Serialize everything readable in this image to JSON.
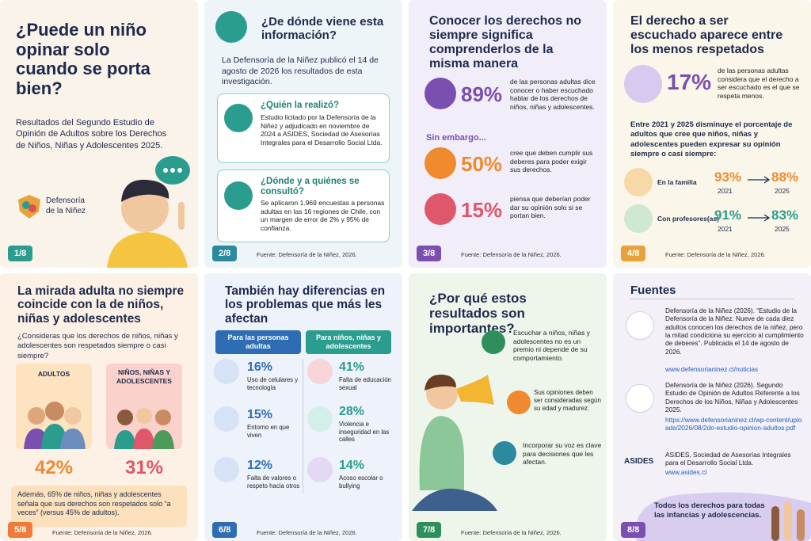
{
  "cards": [
    {
      "title": "¿Puede un niño opinar solo cuando se porta bien?",
      "text": "Resultados del Segundo Estudio de Opinión de Adultos sobre los Derechos de Niños, Niñas y Adolescentes 2025.",
      "logo": "Defensoría de la Niñez",
      "page": "1/8"
    },
    {
      "title": "¿De dónde viene esta información?",
      "intro": "La Defensoría de la Niñez publicó el 14 de agosto de 2026 los resultados de esta investigación.",
      "boxes": [
        {
          "heading": "¿Quién la realizó?",
          "text": "Estudio licitado por la Defensoría de la Niñez y adjudicado en noviembre de 2024 a ASIDES, Sociedad de Asesorías Integrales para el Desarrollo Social Ltda."
        },
        {
          "heading": "¿Dónde y a quiénes se consultó?",
          "text": "Se aplicaron 1.969 encuestas a personas adultas en las 16 regiones de Chile, con un margen de error de 2% y 95% de confianza."
        }
      ],
      "source": "Fuente: Defensoría de la Niñez, 2026.",
      "page": "2/8"
    },
    {
      "title": "Conocer los derechos no siempre significa comprenderlos de la misma manera",
      "stats": [
        {
          "value": "89%",
          "text": "de las personas adultas dice conocer o haber escuchado hablar de los derechos de niños, niñas y adolescentes."
        },
        {
          "value": "50%",
          "text": "cree que deben cumplir sus deberes para poder exigir sus derechos."
        },
        {
          "value": "15%",
          "text": "piensa que deberían poder dar su opinión solo si se portan bien."
        }
      ],
      "subheading": "Sin embargo...",
      "source": "Fuente: Defensoría de la Niñez, 2026.",
      "page": "3/8"
    },
    {
      "title": "El derecho a ser escuchado aparece entre los menos respetados",
      "stat": {
        "value": "17%",
        "text": "de las personas adultas considera que el derecho a ser escuchado es el que se respeta menos."
      },
      "subtitle": "Entre 2021 y 2025 disminuye el porcentaje de adultos que cree que niños, niñas y adolescentes pueden expresar su opinión siempre o casi siempre:",
      "rows": [
        {
          "label": "En la familia",
          "from": "93%",
          "from_year": "2021",
          "to": "88%",
          "to_year": "2025"
        },
        {
          "label": "Con profesores(as)",
          "from": "91%",
          "from_year": "2021",
          "to": "83%",
          "to_year": "2025"
        }
      ],
      "source": "Fuente: Defensoría de la Niñez, 2026.",
      "page": "4/8"
    },
    {
      "title": "La mirada adulta no siempre coincide con la de niños, niñas y adolescentes",
      "question": "¿Consideras que los derechos de niños, niñas y adolescentes son respetados siempre o casi siempre?",
      "groups": [
        {
          "label": "ADULTOS",
          "value": "42%"
        },
        {
          "label": "NIÑOS, NIÑAS Y ADOLESCENTES",
          "value": "31%"
        }
      ],
      "note": "Además, 65% de niños, niñas y adolescentes señala que sus derechos son respetados solo “a veces” (versus 45% de adultos).",
      "source": "Fuente: Defensoría de la Niñez, 2026.",
      "page": "5/8"
    },
    {
      "title": "También hay diferencias en los problemas que más les afectan",
      "columns": [
        {
          "heading": "Para las personas adultas",
          "items": [
            {
              "value": "16%",
              "text": "Uso de celulares y tecnología"
            },
            {
              "value": "15%",
              "text": "Entorno en que viven"
            },
            {
              "value": "12%",
              "text": "Falta de valores o respeto hacia otros"
            }
          ]
        },
        {
          "heading": "Para niños, niñas y adolescentes",
          "items": [
            {
              "value": "41%",
              "text": "Falta de educación sexual"
            },
            {
              "value": "28%",
              "text": "Violencia e inseguridad en las calles"
            },
            {
              "value": "14%",
              "text": "Acoso escolar o bullying"
            }
          ]
        }
      ],
      "source": "Fuente: Defensoría de la Niñez, 2026.",
      "page": "6/8"
    },
    {
      "title": "¿Por qué estos resultados son importantes?",
      "points": [
        "Escuchar a niños, niñas y adolescentes no es un premio ni depende de su comportamiento.",
        "Sus opiniones deben ser consideradas según su edad y madurez.",
        "Incorporar su voz es clave para decisiones que les afectan."
      ],
      "source": "Fuente: Defensoría de la Niñez, 2026.",
      "page": "7/8"
    },
    {
      "title": "Fuentes",
      "sources": [
        {
          "text": "Defensoría de la Niñez (2026). “Estudio de la Defensoría de la Niñez: Nueve de cada diez adultos conocen los derechos de la niñez, pero la mitad condiciona su ejercicio al cumplimiento de deberes”. Publicada el 14 de agosto de 2026.",
          "link": "www.defensorianinez.cl/noticias"
        },
        {
          "text": "Defensoría de la Niñez (2026). Segundo Estudio de Opinión de Adultos Referente a los Derechos de los Niños, Niñas y Adolescentes 2025.",
          "link": "https://www.defensorianinez.cl/wp-content/uploads/2026/08/2do-estudio-opinion-adultos.pdf"
        },
        {
          "icon": "ASIDES",
          "text": "ASIDES, Sociedad de Asesorías Integrales para el Desarrollo Social Ltda.",
          "link": "www.asides.cl"
        }
      ],
      "closing": "Todos los derechos para todas las infancias y adolescencias.",
      "page": "8/8"
    }
  ]
}
